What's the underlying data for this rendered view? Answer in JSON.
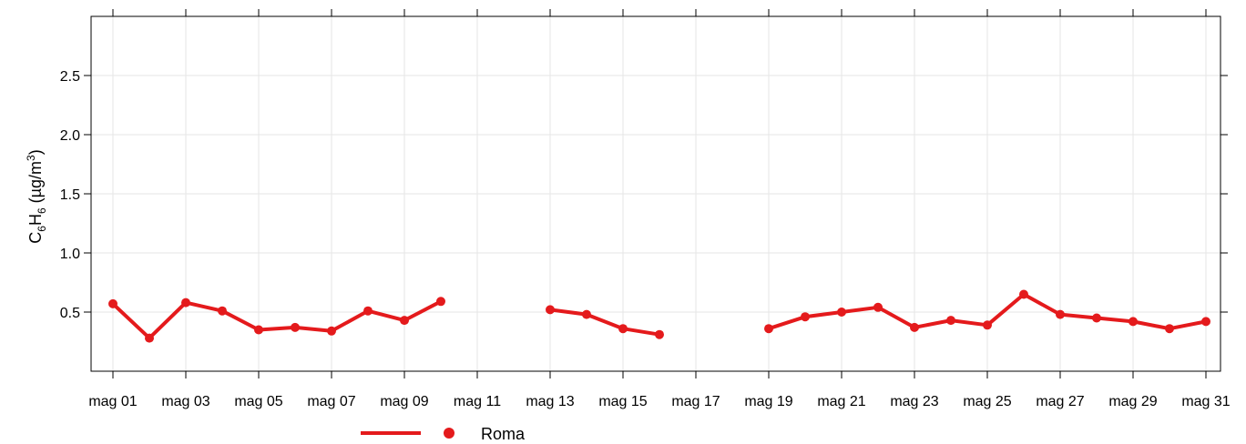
{
  "chart_data": {
    "type": "line",
    "ylabel": {
      "base": "C",
      "sub1": "6",
      "mid": "H",
      "sub2": "6",
      "unit_open": " (µg/m",
      "sup": "3",
      "unit_close": ")"
    },
    "xlabel": "",
    "title": "",
    "x_tick_labels": [
      "mag 01",
      "mag 03",
      "mag 05",
      "mag 07",
      "mag 09",
      "mag 11",
      "mag 13",
      "mag 15",
      "mag 17",
      "mag 19",
      "mag 21",
      "mag 23",
      "mag 25",
      "mag 27",
      "mag 29",
      "mag 31"
    ],
    "x_tick_days": [
      1,
      3,
      5,
      7,
      9,
      11,
      13,
      15,
      17,
      19,
      21,
      23,
      25,
      27,
      29,
      31
    ],
    "xlim": [
      0.4,
      31.4
    ],
    "y_ticks": [
      0.5,
      1.0,
      1.5,
      2.0,
      2.5
    ],
    "y_tick_labels": [
      "0.5",
      "1.0",
      "1.5",
      "2.0",
      "2.5"
    ],
    "ylim": [
      0,
      3.0
    ],
    "grid": true,
    "legend_position": "bottom",
    "series": [
      {
        "name": "Roma",
        "color": "#e41a1c",
        "x": [
          1,
          2,
          3,
          4,
          5,
          6,
          7,
          8,
          9,
          10,
          11,
          12,
          13,
          14,
          15,
          16,
          17,
          18,
          19,
          20,
          21,
          22,
          23,
          24,
          25,
          26,
          27,
          28,
          29,
          30,
          31
        ],
        "values": [
          0.57,
          0.28,
          0.58,
          0.51,
          0.35,
          0.37,
          0.34,
          0.51,
          0.43,
          0.59,
          null,
          null,
          0.52,
          0.48,
          0.36,
          0.31,
          null,
          null,
          0.36,
          0.46,
          0.5,
          0.54,
          0.37,
          0.43,
          0.39,
          0.65,
          0.48,
          0.45,
          0.42,
          0.36,
          0.42
        ]
      }
    ]
  }
}
